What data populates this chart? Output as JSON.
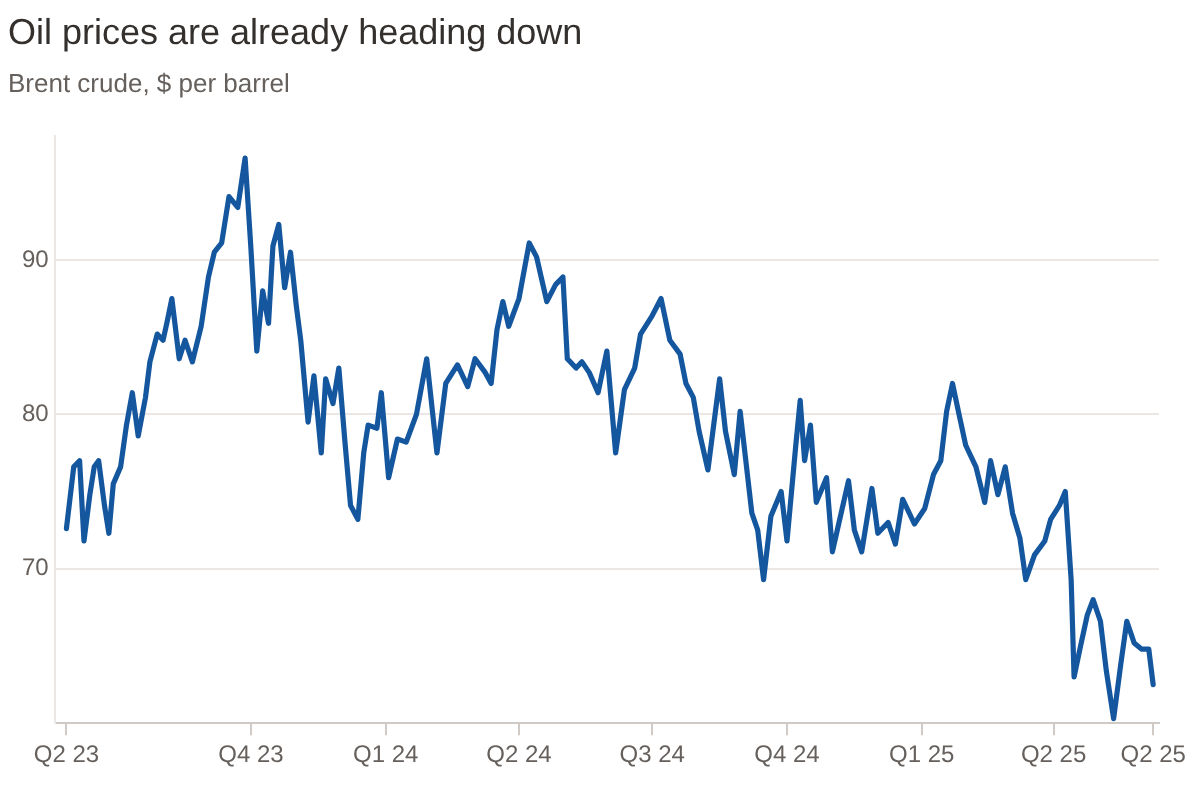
{
  "chart_data": {
    "type": "line",
    "title": "Oil prices are already heading down",
    "subtitle": "Brent crude, $ per barrel",
    "x": [
      "2023-05-28",
      "2023-06-02",
      "2023-06-06",
      "2023-06-09",
      "2023-06-13",
      "2023-06-16",
      "2023-06-19",
      "2023-06-23",
      "2023-06-26",
      "2023-06-29",
      "2023-07-04",
      "2023-07-08",
      "2023-07-12",
      "2023-07-16",
      "2023-07-21",
      "2023-07-24",
      "2023-07-29",
      "2023-08-02",
      "2023-08-05",
      "2023-08-08",
      "2023-08-13",
      "2023-08-17",
      "2023-08-22",
      "2023-08-28",
      "2023-09-02",
      "2023-09-06",
      "2023-09-11",
      "2023-09-16",
      "2023-09-22",
      "2023-09-27",
      "2023-10-01",
      "2023-10-05",
      "2023-10-09",
      "2023-10-13",
      "2023-10-16",
      "2023-10-20",
      "2023-10-24",
      "2023-10-28",
      "2023-11-01",
      "2023-11-04",
      "2023-11-09",
      "2023-11-13",
      "2023-11-18",
      "2023-11-21",
      "2023-11-26",
      "2023-11-30",
      "2023-12-04",
      "2023-12-08",
      "2023-12-13",
      "2023-12-17",
      "2023-12-20",
      "2023-12-26",
      "2023-12-29",
      "2024-01-03",
      "2024-01-09",
      "2024-01-15",
      "2024-01-22",
      "2024-01-29",
      "2024-02-05",
      "2024-02-11",
      "2024-02-19",
      "2024-02-26",
      "2024-03-02",
      "2024-03-09",
      "2024-03-13",
      "2024-03-17",
      "2024-03-21",
      "2024-03-25",
      "2024-04-01",
      "2024-04-08",
      "2024-04-13",
      "2024-04-20",
      "2024-04-26",
      "2024-05-01",
      "2024-05-04",
      "2024-05-10",
      "2024-05-14",
      "2024-05-19",
      "2024-05-25",
      "2024-05-31",
      "2024-06-06",
      "2024-06-12",
      "2024-06-19",
      "2024-06-23",
      "2024-07-01",
      "2024-07-07",
      "2024-07-13",
      "2024-07-20",
      "2024-07-24",
      "2024-07-29",
      "2024-08-02",
      "2024-08-08",
      "2024-08-16",
      "2024-08-20",
      "2024-08-26",
      "2024-08-30",
      "2024-09-07",
      "2024-09-11",
      "2024-09-15",
      "2024-09-20",
      "2024-09-27",
      "2024-10-01",
      "2024-10-07",
      "2024-10-10",
      "2024-10-13",
      "2024-10-17",
      "2024-10-21",
      "2024-10-28",
      "2024-11-01",
      "2024-11-06",
      "2024-11-12",
      "2024-11-16",
      "2024-11-21",
      "2024-11-28",
      "2024-12-02",
      "2024-12-09",
      "2024-12-14",
      "2024-12-19",
      "2024-12-27",
      "2025-01-03",
      "2025-01-09",
      "2025-01-14",
      "2025-01-18",
      "2025-01-22",
      "2025-01-26",
      "2025-01-31",
      "2025-02-07",
      "2025-02-13",
      "2025-02-17",
      "2025-02-22",
      "2025-02-27",
      "2025-03-04",
      "2025-03-09",
      "2025-03-13",
      "2025-03-19",
      "2025-03-26",
      "2025-03-30",
      "2025-04-05",
      "2025-04-09",
      "2025-04-13",
      "2025-04-15",
      "2025-04-19",
      "2025-04-24",
      "2025-04-28",
      "2025-05-03",
      "2025-05-07",
      "2025-05-12",
      "2025-05-17",
      "2025-05-21",
      "2025-05-26",
      "2025-05-31",
      "2025-06-05",
      "2025-06-08"
    ],
    "series": [
      {
        "color": "#15579e",
        "values": [
          72.6,
          76.6,
          77.0,
          71.8,
          74.8,
          76.6,
          77.0,
          74.1,
          72.3,
          75.5,
          76.6,
          79.3,
          81.4,
          78.6,
          81.1,
          83.4,
          85.2,
          84.8,
          86.1,
          87.5,
          83.6,
          84.8,
          83.4,
          85.7,
          88.9,
          90.5,
          91.1,
          94.1,
          93.4,
          96.6,
          90.7,
          84.1,
          88.0,
          85.9,
          90.9,
          92.3,
          88.2,
          90.5,
          87.0,
          84.8,
          79.5,
          82.5,
          77.5,
          82.3,
          80.7,
          83.0,
          78.4,
          74.1,
          73.2,
          77.5,
          79.3,
          79.1,
          81.4,
          75.9,
          78.4,
          78.2,
          80.0,
          83.6,
          77.5,
          82.0,
          83.2,
          81.8,
          83.6,
          82.7,
          82.0,
          85.5,
          87.3,
          85.7,
          87.5,
          91.1,
          90.2,
          87.3,
          88.4,
          88.9,
          83.6,
          83.0,
          83.4,
          82.7,
          81.4,
          84.1,
          77.5,
          81.6,
          83.0,
          85.2,
          86.4,
          87.5,
          84.8,
          83.9,
          82.0,
          81.1,
          78.9,
          76.4,
          82.3,
          78.9,
          76.1,
          80.2,
          73.6,
          72.5,
          69.3,
          73.4,
          75.0,
          71.8,
          78.0,
          80.9,
          77.0,
          79.3,
          74.3,
          75.9,
          71.1,
          73.2,
          75.7,
          72.5,
          71.1,
          75.2,
          72.3,
          73.0,
          71.6,
          74.5,
          72.9,
          73.9,
          76.1,
          77.0,
          80.2,
          82.0,
          80.2,
          78.0,
          76.6,
          74.3,
          77.0,
          74.8,
          76.6,
          73.6,
          72.0,
          69.3,
          70.9,
          71.8,
          73.2,
          74.1,
          75.0,
          69.3,
          63.0,
          64.8,
          67.0,
          68.0,
          66.6,
          63.4,
          60.3,
          63.9,
          66.6,
          65.2,
          64.8,
          64.8,
          62.5
        ]
      }
    ],
    "xlim": [
      "2023-05-20",
      "2025-06-12"
    ],
    "xticks": [
      {
        "value": "2023-05-28",
        "label": "Q2 23"
      },
      {
        "value": "2023-10-01",
        "label": "Q4 23"
      },
      {
        "value": "2024-01-01",
        "label": "Q1 24"
      },
      {
        "value": "2024-04-01",
        "label": "Q2 24"
      },
      {
        "value": "2024-07-01",
        "label": "Q3 24"
      },
      {
        "value": "2024-10-01",
        "label": "Q4 24"
      },
      {
        "value": "2025-01-01",
        "label": "Q1 25"
      },
      {
        "value": "2025-04-01",
        "label": "Q2 25"
      },
      {
        "value": "2025-06-08",
        "label": "Q2 25"
      }
    ],
    "ylim": [
      60,
      98
    ],
    "yticks": [
      70,
      80,
      90
    ],
    "grid": "y",
    "legend": false,
    "marker": "none",
    "line_style": "solid"
  }
}
